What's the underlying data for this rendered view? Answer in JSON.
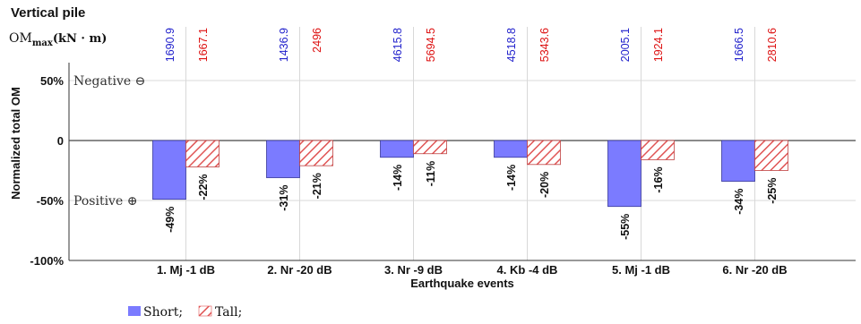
{
  "title": "Vertical pile",
  "om_label_main": "OM",
  "om_label_sub": "max",
  "om_label_unit": "(kN · m)",
  "annotation_negative": "Negative ⊖",
  "annotation_positive": "Positive ⊕",
  "legend_suffix": ";",
  "chart_data": {
    "type": "bar",
    "title": "Vertical pile",
    "xlabel": "Earthquake events",
    "ylabel": "Normalized total OM",
    "ylim": [
      -100,
      50
    ],
    "yticks": [
      50,
      0,
      -50,
      -100
    ],
    "ytick_labels": [
      "50%",
      "0",
      "-50%",
      "-100%"
    ],
    "grid": true,
    "legend_position": "bottom-left",
    "categories": [
      "1. Mj -1 dB",
      "2. Nr -20 dB",
      "3. Nr -9 dB",
      "4. Kb -4 dB",
      "5. Mj -1 dB",
      "6. Nr -20 dB"
    ],
    "series": [
      {
        "name": "Short",
        "color": "#7b7bff",
        "values": [
          -49,
          -31,
          -14,
          -14,
          -55,
          -34
        ],
        "labels": [
          "-49%",
          "-31%",
          "-14%",
          "-14%",
          "-55%",
          "-34%"
        ],
        "om_max": [
          "1690.9",
          "1436.9",
          "4615.8",
          "4518.8",
          "2005.1",
          "1666.5"
        ],
        "om_color": "#2222cc"
      },
      {
        "name": "Tall",
        "color": "#e05555",
        "pattern": "hatched",
        "values": [
          -22,
          -21,
          -11,
          -20,
          -16,
          -25
        ],
        "labels": [
          "-22%",
          "-21%",
          "-11%",
          "-20%",
          "-16%",
          "-25%"
        ],
        "om_max": [
          "1667.1",
          "2496",
          "5694.5",
          "5343.6",
          "1924.1",
          "2810.6"
        ],
        "om_color": "#dd1111"
      }
    ]
  }
}
